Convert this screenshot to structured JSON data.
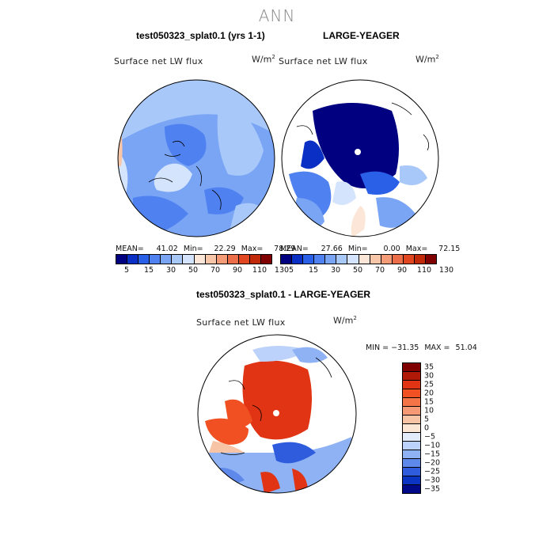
{
  "title": "ANN",
  "panels": [
    {
      "title": "test050323_splat0.1 (yrs 1-1)",
      "variable": "Surface net LW flux",
      "units_base": "W/m",
      "units_exp": "2",
      "stats": {
        "mean_label": "MEAN=",
        "mean": "41.02",
        "min_label": "Min=",
        "min": "22.29",
        "max_label": "Max=",
        "max": "78.29"
      }
    },
    {
      "title": "LARGE-YEAGER",
      "variable": "Surface net LW flux",
      "units_base": "W/m",
      "units_exp": "2",
      "stats": {
        "mean_label": "MEAN=",
        "mean": "27.66",
        "min_label": "Min=",
        "min": "0.00",
        "max_label": "Max=",
        "max": "72.15"
      }
    },
    {
      "title": "test050323_splat0.1 - LARGE-YEAGER",
      "variable": "Surface net LW flux",
      "units_base": "W/m",
      "units_exp": "2",
      "stats": {
        "min_label": "MIN =",
        "min": "−31.35",
        "max_label": "MAX =",
        "max": "51.04"
      }
    }
  ],
  "chart_data": [
    {
      "type": "heatmap",
      "projection": "north polar stereographic",
      "title": "test050323_splat0.1 (yrs 1-1)",
      "variable": "Surface net LW flux",
      "units": "W/m^2",
      "mean": 41.02,
      "min": 22.29,
      "max": 78.29,
      "colorbar_ticks": [
        "5",
        "15",
        "30",
        "50",
        "70",
        "90",
        "110",
        "130"
      ]
    },
    {
      "type": "heatmap",
      "projection": "north polar stereographic",
      "title": "LARGE-YEAGER",
      "variable": "Surface net LW flux",
      "units": "W/m^2",
      "mean": 27.66,
      "min": 0.0,
      "max": 72.15,
      "colorbar_ticks": [
        "5",
        "15",
        "30",
        "50",
        "70",
        "90",
        "110",
        "130"
      ]
    },
    {
      "type": "heatmap",
      "projection": "north polar stereographic",
      "title": "test050323_splat0.1 - LARGE-YEAGER",
      "variable": "Surface net LW flux",
      "units": "W/m^2",
      "min": -31.35,
      "max": 51.04,
      "colorbar_ticks": [
        "35",
        "30",
        "25",
        "20",
        "15",
        "10",
        "5",
        "0",
        "−5",
        "−10",
        "−15",
        "−20",
        "−25",
        "−30",
        "−35"
      ]
    }
  ],
  "colors": {
    "abs_scale": [
      "#000080",
      "#0a2fc4",
      "#2a5fe8",
      "#4f82f0",
      "#7aa5f5",
      "#a8c8fa",
      "#d4e4fc",
      "#fce6d8",
      "#f8c6a8",
      "#f49c78",
      "#ec6e48",
      "#e04620",
      "#c02a0a",
      "#800000"
    ],
    "diff_scale": [
      "#800000",
      "#b01808",
      "#e03414",
      "#f05022",
      "#f47448",
      "#f69a76",
      "#f8c4a6",
      "#fbe6d6",
      "#e2ecfc",
      "#bcd2fa",
      "#8eb2f4",
      "#5e88ea",
      "#2e5cdc",
      "#0c34c2",
      "#000a88"
    ]
  }
}
